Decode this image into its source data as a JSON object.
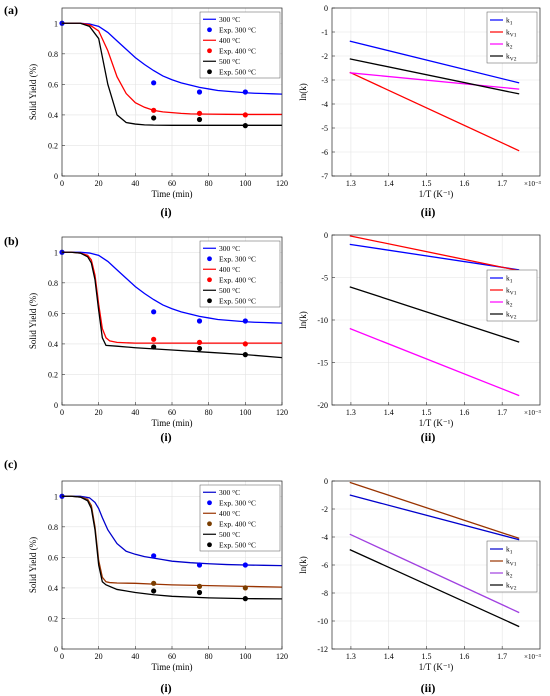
{
  "row_labels": [
    "(a)",
    "(b)",
    "(c)"
  ],
  "sub_labels": {
    "left": "(i)",
    "right": "(ii)"
  },
  "exponent_label": "×10⁻³",
  "chart_data": [
    {
      "type": "line",
      "id": "a-i",
      "xlabel": "Time (min)",
      "ylabel": "Solid Yield (%)",
      "xlim": [
        0,
        120
      ],
      "ylim": [
        0,
        1.1
      ],
      "xticks": [
        0,
        20,
        40,
        60,
        80,
        100,
        120
      ],
      "yticks": [
        0,
        0.2,
        0.4,
        0.6,
        0.8,
        1
      ],
      "grid": true,
      "legend_position": "top-right",
      "series": [
        {
          "name": "300 °C",
          "kind": "line",
          "color": "#0000ff",
          "x": [
            0,
            5,
            10,
            15,
            20,
            25,
            30,
            35,
            40,
            45,
            50,
            55,
            60,
            65,
            70,
            75,
            80,
            85,
            90,
            95,
            100,
            105,
            110,
            115,
            120
          ],
          "y": [
            1.0,
            1.0,
            1.0,
            0.995,
            0.98,
            0.94,
            0.885,
            0.83,
            0.775,
            0.73,
            0.69,
            0.655,
            0.63,
            0.61,
            0.595,
            0.58,
            0.57,
            0.56,
            0.555,
            0.55,
            0.545,
            0.542,
            0.54,
            0.538,
            0.536
          ]
        },
        {
          "name": "Exp. 300 °C",
          "kind": "marker",
          "color": "#0000ff",
          "x": [
            0,
            50,
            75,
            100
          ],
          "y": [
            1.0,
            0.61,
            0.55,
            0.55
          ]
        },
        {
          "name": "400 °C",
          "kind": "line",
          "color": "#ff0000",
          "x": [
            0,
            5,
            10,
            15,
            20,
            25,
            30,
            35,
            40,
            45,
            50,
            55,
            60,
            65,
            70,
            80,
            90,
            100,
            110,
            120
          ],
          "y": [
            1.0,
            1.0,
            1.0,
            0.99,
            0.95,
            0.82,
            0.65,
            0.54,
            0.48,
            0.45,
            0.43,
            0.42,
            0.415,
            0.41,
            0.407,
            0.405,
            0.404,
            0.403,
            0.403,
            0.403
          ]
        },
        {
          "name": "Exp. 400 °C",
          "kind": "marker",
          "color": "#ff0000",
          "x": [
            50,
            75,
            100
          ],
          "y": [
            0.43,
            0.41,
            0.4
          ]
        },
        {
          "name": "500 °C",
          "kind": "line",
          "color": "#000000",
          "x": [
            0,
            5,
            10,
            15,
            20,
            25,
            30,
            35,
            40,
            45,
            50,
            60,
            70,
            80,
            90,
            100,
            110,
            120
          ],
          "y": [
            1.0,
            1.0,
            1.0,
            0.98,
            0.9,
            0.6,
            0.4,
            0.35,
            0.34,
            0.335,
            0.333,
            0.332,
            0.332,
            0.332,
            0.332,
            0.332,
            0.332,
            0.332
          ]
        },
        {
          "name": "Exp. 500 °C",
          "kind": "marker",
          "color": "#000000",
          "x": [
            50,
            75,
            100
          ],
          "y": [
            0.38,
            0.37,
            0.33
          ]
        }
      ]
    },
    {
      "type": "line",
      "id": "a-ii",
      "xlabel": "1/T (K⁻¹)",
      "ylabel": "ln(k)",
      "xlim": [
        1.25,
        1.8
      ],
      "ylim": [
        -7,
        0
      ],
      "xticks": [
        1.3,
        1.4,
        1.5,
        1.6,
        1.7
      ],
      "yticks": [
        -7,
        -6,
        -5,
        -4,
        -3,
        -2,
        -1,
        0
      ],
      "grid": true,
      "legend_position": "top-right",
      "series": [
        {
          "name": "k",
          "sub": "1",
          "kind": "line",
          "color": "#0000ff",
          "x": [
            1.297,
            1.745
          ],
          "y": [
            -1.38,
            -3.12
          ]
        },
        {
          "name": "k",
          "sub": "V1",
          "kind": "line",
          "color": "#ff0000",
          "x": [
            1.297,
            1.745
          ],
          "y": [
            -2.68,
            -5.95
          ]
        },
        {
          "name": "k",
          "sub": "2",
          "kind": "line",
          "color": "#ff00ff",
          "x": [
            1.297,
            1.745
          ],
          "y": [
            -2.7,
            -3.38
          ]
        },
        {
          "name": "k",
          "sub": "V2",
          "kind": "line",
          "color": "#000000",
          "x": [
            1.297,
            1.745
          ],
          "y": [
            -2.12,
            -3.58
          ]
        }
      ]
    },
    {
      "type": "line",
      "id": "b-i",
      "xlabel": "Time (min)",
      "ylabel": "Solid Yield (%)",
      "xlim": [
        0,
        120
      ],
      "ylim": [
        0,
        1.1
      ],
      "xticks": [
        0,
        20,
        40,
        60,
        80,
        100,
        120
      ],
      "yticks": [
        0,
        0.2,
        0.4,
        0.6,
        0.8,
        1
      ],
      "grid": true,
      "legend_position": "top-right",
      "series": [
        {
          "name": "300 °C",
          "kind": "line",
          "color": "#0000ff",
          "x": [
            0,
            5,
            10,
            15,
            20,
            25,
            30,
            35,
            40,
            45,
            50,
            55,
            60,
            65,
            70,
            75,
            80,
            85,
            90,
            95,
            100,
            105,
            110,
            115,
            120
          ],
          "y": [
            1.0,
            1.0,
            1.0,
            0.995,
            0.98,
            0.94,
            0.885,
            0.83,
            0.775,
            0.73,
            0.69,
            0.655,
            0.63,
            0.61,
            0.595,
            0.58,
            0.57,
            0.56,
            0.555,
            0.55,
            0.545,
            0.542,
            0.54,
            0.538,
            0.536
          ]
        },
        {
          "name": "Exp. 300 °C",
          "kind": "marker",
          "color": "#0000ff",
          "x": [
            0,
            50,
            75,
            100
          ],
          "y": [
            1.0,
            0.61,
            0.55,
            0.55
          ]
        },
        {
          "name": "400 °C",
          "kind": "line",
          "color": "#ff0000",
          "x": [
            0,
            5,
            10,
            14,
            16,
            18,
            20,
            22,
            24,
            26,
            30,
            40,
            50,
            60,
            80,
            100,
            120
          ],
          "y": [
            1.0,
            1.0,
            0.995,
            0.98,
            0.95,
            0.85,
            0.66,
            0.5,
            0.44,
            0.42,
            0.41,
            0.405,
            0.405,
            0.405,
            0.405,
            0.405,
            0.405
          ]
        },
        {
          "name": "Exp. 400 °C",
          "kind": "marker",
          "color": "#ff0000",
          "x": [
            50,
            75,
            100
          ],
          "y": [
            0.43,
            0.41,
            0.4
          ]
        },
        {
          "name": "500 °C",
          "kind": "line",
          "color": "#000000",
          "x": [
            0,
            5,
            10,
            14,
            16,
            18,
            20,
            22,
            24,
            30,
            40,
            60,
            80,
            100,
            120
          ],
          "y": [
            1.0,
            1.0,
            0.995,
            0.97,
            0.93,
            0.82,
            0.62,
            0.44,
            0.39,
            0.385,
            0.375,
            0.36,
            0.345,
            0.33,
            0.31
          ]
        },
        {
          "name": "Exp. 500 °C",
          "kind": "marker",
          "color": "#000000",
          "x": [
            50,
            75,
            100
          ],
          "y": [
            0.38,
            0.37,
            0.33
          ]
        }
      ]
    },
    {
      "type": "line",
      "id": "b-ii",
      "xlabel": "1/T (K⁻¹)",
      "ylabel": "ln(k)",
      "xlim": [
        1.25,
        1.8
      ],
      "ylim": [
        -20,
        0
      ],
      "xticks": [
        1.3,
        1.4,
        1.5,
        1.6,
        1.7
      ],
      "yticks": [
        -20,
        -15,
        -10,
        -5,
        0
      ],
      "grid": true,
      "legend_position": "center-right",
      "series": [
        {
          "name": "k",
          "sub": "1",
          "kind": "line",
          "color": "#0000ff",
          "x": [
            1.297,
            1.745
          ],
          "y": [
            -1.1,
            -4.1
          ]
        },
        {
          "name": "k",
          "sub": "V1",
          "kind": "line",
          "color": "#ff0000",
          "x": [
            1.297,
            1.745
          ],
          "y": [
            -0.1,
            -4.2
          ]
        },
        {
          "name": "k",
          "sub": "2",
          "kind": "line",
          "color": "#ff00ff",
          "x": [
            1.297,
            1.745
          ],
          "y": [
            -11.0,
            -18.9
          ]
        },
        {
          "name": "k",
          "sub": "V2",
          "kind": "line",
          "color": "#000000",
          "x": [
            1.297,
            1.745
          ],
          "y": [
            -6.1,
            -12.6
          ]
        }
      ]
    },
    {
      "type": "line",
      "id": "c-i",
      "xlabel": "Time (min)",
      "ylabel": "Solid Yield (%)",
      "xlim": [
        0,
        120
      ],
      "ylim": [
        0,
        1.1
      ],
      "xticks": [
        0,
        20,
        40,
        60,
        80,
        100,
        120
      ],
      "yticks": [
        0,
        0.2,
        0.4,
        0.6,
        0.8,
        1
      ],
      "grid": true,
      "legend_position": "top-right",
      "series": [
        {
          "name": "300 °C",
          "kind": "line",
          "color": "#0000cc",
          "x": [
            0,
            5,
            10,
            15,
            18,
            20,
            22,
            25,
            30,
            35,
            40,
            45,
            50,
            55,
            60,
            70,
            80,
            90,
            100,
            110,
            120
          ],
          "y": [
            1.0,
            1.0,
            1.0,
            0.99,
            0.96,
            0.92,
            0.86,
            0.78,
            0.69,
            0.64,
            0.62,
            0.605,
            0.595,
            0.585,
            0.575,
            0.565,
            0.558,
            0.553,
            0.55,
            0.548,
            0.546
          ]
        },
        {
          "name": "Exp. 300 °C",
          "kind": "marker",
          "color": "#0000ff",
          "x": [
            0,
            50,
            75,
            100
          ],
          "y": [
            1.0,
            0.61,
            0.55,
            0.55
          ]
        },
        {
          "name": "400 °C",
          "kind": "line",
          "color": "#993300",
          "x": [
            0,
            5,
            10,
            14,
            16,
            18,
            20,
            22,
            24,
            26,
            30,
            40,
            50,
            60,
            80,
            100,
            120
          ],
          "y": [
            1.0,
            1.0,
            0.995,
            0.98,
            0.94,
            0.8,
            0.58,
            0.47,
            0.44,
            0.435,
            0.432,
            0.43,
            0.425,
            0.42,
            0.415,
            0.41,
            0.405
          ]
        },
        {
          "name": "Exp. 400 °C",
          "kind": "marker",
          "color": "#7a3d00",
          "x": [
            50,
            75,
            100
          ],
          "y": [
            0.43,
            0.41,
            0.4
          ]
        },
        {
          "name": "500 °C",
          "kind": "line",
          "color": "#000000",
          "x": [
            0,
            5,
            10,
            14,
            16,
            18,
            20,
            22,
            24,
            30,
            40,
            50,
            60,
            80,
            100,
            120
          ],
          "y": [
            1.0,
            1.0,
            0.995,
            0.97,
            0.92,
            0.78,
            0.55,
            0.44,
            0.42,
            0.39,
            0.37,
            0.355,
            0.345,
            0.335,
            0.33,
            0.328
          ]
        },
        {
          "name": "Exp. 500 °C",
          "kind": "marker",
          "color": "#000000",
          "x": [
            50,
            75,
            100
          ],
          "y": [
            0.38,
            0.37,
            0.33
          ]
        }
      ]
    },
    {
      "type": "line",
      "id": "c-ii",
      "xlabel": "1/T (K⁻¹)",
      "ylabel": "ln(k)",
      "xlim": [
        1.25,
        1.8
      ],
      "ylim": [
        -12,
        0
      ],
      "xticks": [
        1.3,
        1.4,
        1.5,
        1.6,
        1.7
      ],
      "yticks": [
        -12,
        -10,
        -8,
        -6,
        -4,
        -2,
        0
      ],
      "grid": true,
      "legend_position": "center-right",
      "series": [
        {
          "name": "k",
          "sub": "1",
          "kind": "line",
          "color": "#0000cc",
          "x": [
            1.297,
            1.745
          ],
          "y": [
            -1.0,
            -4.2
          ]
        },
        {
          "name": "k",
          "sub": "V1",
          "kind": "line",
          "color": "#993300",
          "x": [
            1.297,
            1.745
          ],
          "y": [
            -0.1,
            -4.1
          ]
        },
        {
          "name": "k",
          "sub": "2",
          "kind": "line",
          "color": "#a040e0",
          "x": [
            1.297,
            1.745
          ],
          "y": [
            -3.8,
            -9.4
          ]
        },
        {
          "name": "k",
          "sub": "V2",
          "kind": "line",
          "color": "#000000",
          "x": [
            1.297,
            1.745
          ],
          "y": [
            -4.9,
            -10.4
          ]
        }
      ]
    }
  ]
}
